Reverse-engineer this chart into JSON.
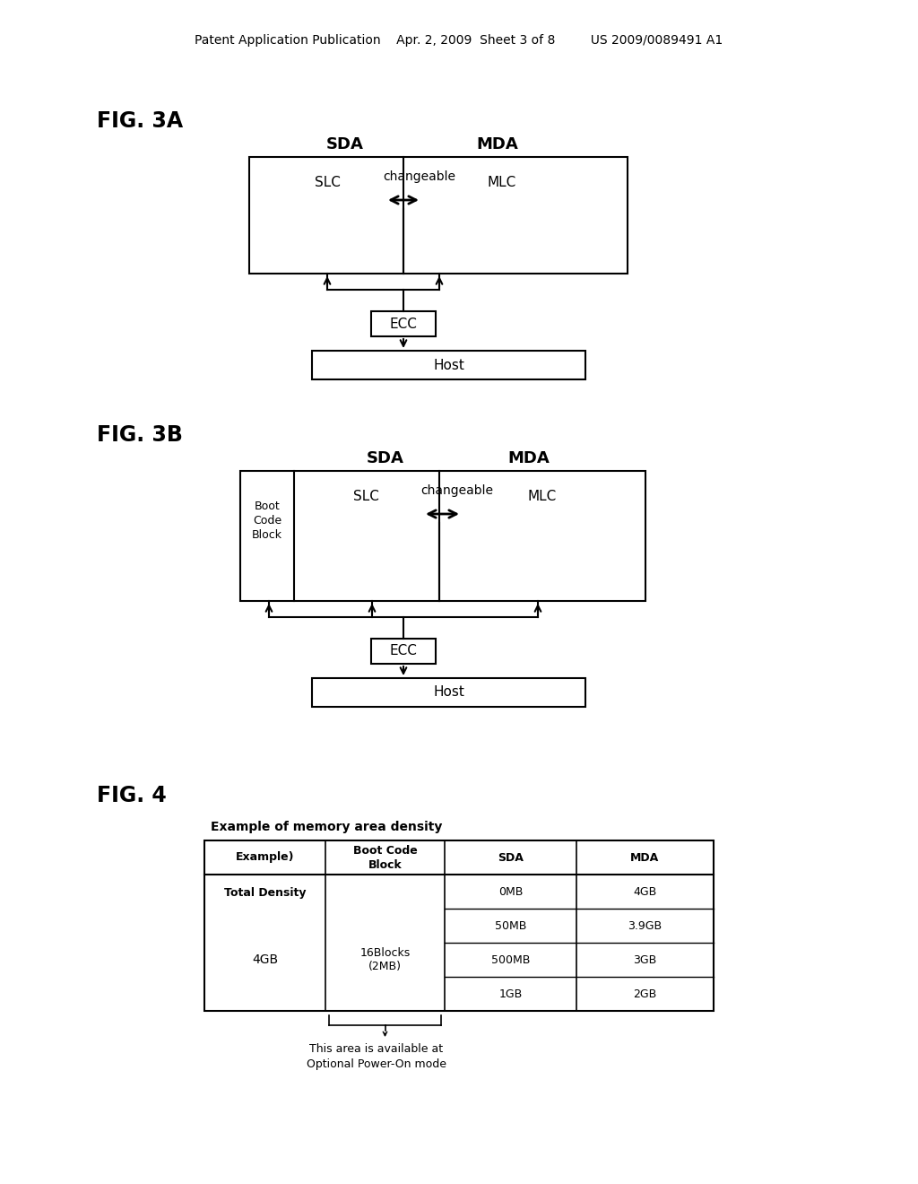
{
  "bg_color": "#ffffff",
  "header_text": "Patent Application Publication    Apr. 2, 2009  Sheet 3 of 8         US 2009/0089491 A1",
  "fig3a_label": "FIG. 3A",
  "fig3b_label": "FIG. 3B",
  "fig4_label": "FIG. 4",
  "fig3a": {
    "sda_label": "SDA",
    "mda_label": "MDA",
    "slc_label": "SLC",
    "changeable_label": "changeable",
    "mlc_label": "MLC",
    "ecc_label": "ECC",
    "host_label": "Host"
  },
  "fig3b": {
    "sda_label": "SDA",
    "mda_label": "MDA",
    "boot_label": "Boot\nCode\nBlock",
    "slc_label": "SLC",
    "changeable_label": "changeable",
    "mlc_label": "MLC",
    "ecc_label": "ECC",
    "host_label": "Host"
  },
  "fig4": {
    "title": "Example of memory area density",
    "headers": [
      "Example)",
      "Boot Code\nBlock",
      "SDA",
      "MDA"
    ],
    "row1_label": "Total Density",
    "row2_label": "4GB",
    "boot_cell": "16Blocks\n(2MB)",
    "sda_values": [
      "0MB",
      "50MB",
      "500MB",
      "1GB"
    ],
    "mda_values": [
      "4GB",
      "3.9GB",
      "3GB",
      "2GB"
    ],
    "note": "This area is available at\nOptional Power-On mode"
  }
}
